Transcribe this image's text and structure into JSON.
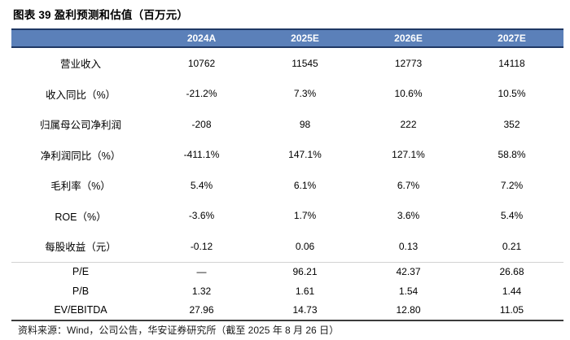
{
  "title": "图表 39  盈利预测和估值（百万元）",
  "table": {
    "corner_label": "",
    "col_headers": [
      "2024A",
      "2025E",
      "2026E",
      "2027E"
    ],
    "rows": [
      {
        "label": "营业收入",
        "values": [
          "10762",
          "11545",
          "12773",
          "14118"
        ]
      },
      {
        "label": "收入同比（%）",
        "values": [
          "-21.2%",
          "7.3%",
          "10.6%",
          "10.5%"
        ]
      },
      {
        "label": "归属母公司净利润",
        "values": [
          "-208",
          "98",
          "222",
          "352"
        ]
      },
      {
        "label": "净利润同比（%）",
        "values": [
          "-411.1%",
          "147.1%",
          "127.1%",
          "58.8%"
        ]
      },
      {
        "label": "毛利率（%）",
        "values": [
          "5.4%",
          "6.1%",
          "6.7%",
          "7.2%"
        ]
      },
      {
        "label": "ROE（%）",
        "values": [
          "-3.6%",
          "1.7%",
          "3.6%",
          "5.4%"
        ]
      },
      {
        "label": "每股收益（元）",
        "values": [
          "-0.12",
          "0.06",
          "0.13",
          "0.21"
        ]
      }
    ],
    "valuation_rows": [
      {
        "label": "P/E",
        "values": [
          "—",
          "96.21",
          "42.37",
          "26.68"
        ]
      },
      {
        "label": "P/B",
        "values": [
          "1.32",
          "1.61",
          "1.54",
          "1.44"
        ]
      },
      {
        "label": "EV/EBITDA",
        "values": [
          "27.96",
          "14.73",
          "12.80",
          "11.05"
        ]
      }
    ]
  },
  "footer": {
    "source": "资料来源：Wind，公司公告，华安证券研究所（截至 2025 年 8 月 26 日）"
  },
  "colors": {
    "header_bg": "#5B80B9",
    "header_border": "#1F3864",
    "header_text": "#FFFFFF",
    "mid_divider": "#D2D2D2",
    "bottom_border": "#3C3C3C"
  }
}
